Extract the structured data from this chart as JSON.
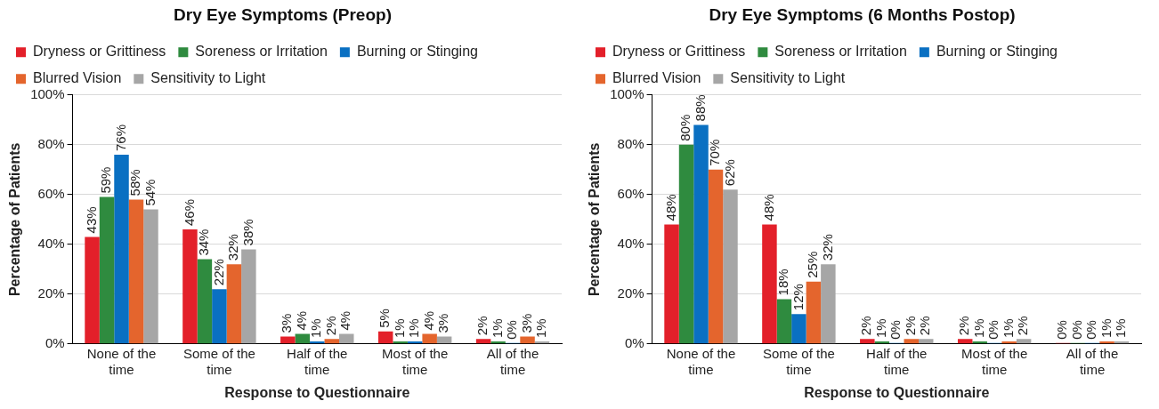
{
  "chart_data": [
    {
      "type": "bar",
      "title": "Dry Eye Symptoms (Preop)",
      "xlabel": "Response to Questionnaire",
      "ylabel": "Percentage of Patients",
      "categories": [
        "None of the time",
        "Some of the time",
        "Half of the time",
        "Most of the time",
        "All of the time"
      ],
      "series": [
        {
          "name": "Dryness or Grittiness",
          "color": "#e3202a",
          "values": [
            43,
            46,
            3,
            5,
            2
          ],
          "value_labels": [
            "43%",
            "46%",
            "3%",
            "5%",
            "2%"
          ]
        },
        {
          "name": "Soreness or Irritation",
          "color": "#2f8b3f",
          "values": [
            59,
            34,
            4,
            1,
            1
          ],
          "value_labels": [
            "59%",
            "34%",
            "4%",
            "1%",
            "1%"
          ]
        },
        {
          "name": "Burning or Stinging",
          "color": "#0a70c2",
          "values": [
            76,
            22,
            1,
            1,
            0
          ],
          "value_labels": [
            "76%",
            "22%",
            "1%",
            "1%",
            "0%"
          ]
        },
        {
          "name": "Blurred Vision",
          "color": "#e4652d",
          "values": [
            58,
            32,
            2,
            4,
            3
          ],
          "value_labels": [
            "58%",
            "32%",
            "2%",
            "4%",
            "3%"
          ]
        },
        {
          "name": "Sensitivity to Light",
          "color": "#a6a6a6",
          "values": [
            54,
            38,
            4,
            3,
            1
          ],
          "value_labels": [
            "54%",
            "38%",
            "4%",
            "3%",
            "1%"
          ]
        }
      ],
      "ylim": [
        0,
        100
      ],
      "yticks": [
        {
          "value": 0,
          "label": "0%"
        },
        {
          "value": 20,
          "label": "20%"
        },
        {
          "value": 40,
          "label": "40%"
        },
        {
          "value": 60,
          "label": "60%"
        },
        {
          "value": 80,
          "label": "80%"
        },
        {
          "value": 100,
          "label": "100%"
        }
      ],
      "grid": "y",
      "legend": "top left"
    },
    {
      "type": "bar",
      "title": "Dry Eye Symptoms (6 Months Postop)",
      "xlabel": "Response to Questionnaire",
      "ylabel": "Percentage of Patients",
      "categories": [
        "None of the time",
        "Some of the time",
        "Half of the time",
        "Most of the time",
        "All of the time"
      ],
      "series": [
        {
          "name": "Dryness or Grittiness",
          "color": "#e3202a",
          "values": [
            48,
            48,
            2,
            2,
            0
          ],
          "value_labels": [
            "48%",
            "48%",
            "2%",
            "2%",
            "0%"
          ]
        },
        {
          "name": "Soreness or Irritation",
          "color": "#2f8b3f",
          "values": [
            80,
            18,
            1,
            1,
            0
          ],
          "value_labels": [
            "80%",
            "18%",
            "1%",
            "1%",
            "0%"
          ]
        },
        {
          "name": "Burning or Stinging",
          "color": "#0a70c2",
          "values": [
            88,
            12,
            0,
            0,
            0
          ],
          "value_labels": [
            "88%",
            "12%",
            "0%",
            "0%",
            "0%"
          ]
        },
        {
          "name": "Blurred Vision",
          "color": "#e4652d",
          "values": [
            70,
            25,
            2,
            1,
            1
          ],
          "value_labels": [
            "70%",
            "25%",
            "2%",
            "1%",
            "1%"
          ]
        },
        {
          "name": "Sensitivity to Light",
          "color": "#a6a6a6",
          "values": [
            62,
            32,
            2,
            2,
            1
          ],
          "value_labels": [
            "62%",
            "32%",
            "2%",
            "2%",
            "1%"
          ]
        }
      ],
      "ylim": [
        0,
        100
      ],
      "yticks": [
        {
          "value": 0,
          "label": "0%"
        },
        {
          "value": 20,
          "label": "20%"
        },
        {
          "value": 40,
          "label": "40%"
        },
        {
          "value": 60,
          "label": "60%"
        },
        {
          "value": 80,
          "label": "80%"
        },
        {
          "value": 100,
          "label": "100%"
        }
      ],
      "grid": "y",
      "legend": "top left"
    }
  ]
}
